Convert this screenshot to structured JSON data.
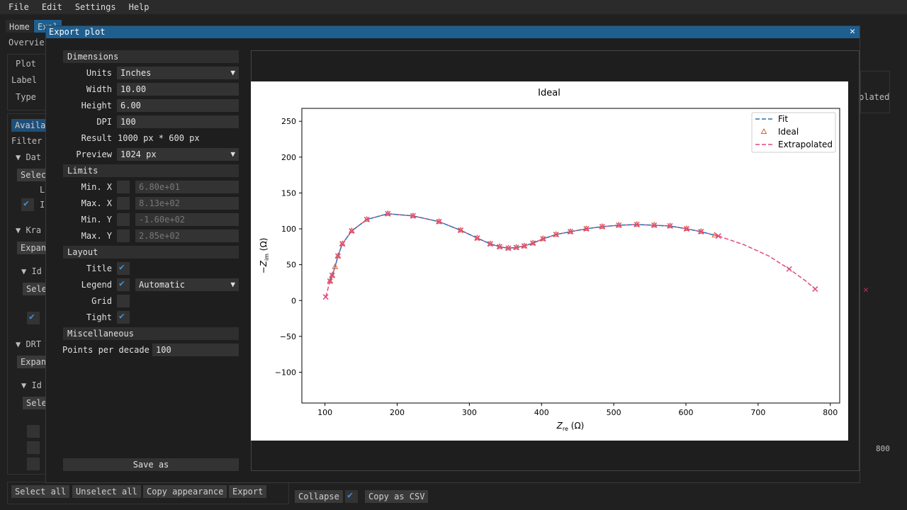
{
  "menu": [
    "File",
    "Edit",
    "Settings",
    "Help"
  ],
  "bg": {
    "tabs": [
      "Home",
      "Expl"
    ],
    "subtab": "Overvie",
    "labels": {
      "plot": "Plot",
      "label": "Label",
      "type": "Type",
      "avail": "Availa",
      "filter": "Filter",
      "dat": "▼ Dat",
      "selec1": "Selec",
      "kra": "▼ Kra",
      "expan1": "Expan",
      "id1": "▼ Id",
      "sele2": "Sele",
      "drt": "▼ DRT",
      "expan2": "Expan",
      "id2": "▼ Id",
      "sele3": "Sele",
      "l": "L",
      "i": "I",
      "right_lated": "plated",
      "axis_800": "800"
    },
    "bottom_buttons": [
      "Select all",
      "Unselect all",
      "Copy appearance",
      "Export"
    ],
    "collapse": "Collapse",
    "copy_csv": "Copy as CSV"
  },
  "modal": {
    "title": "Export plot",
    "close": "✕",
    "sections": {
      "dimensions": "Dimensions",
      "limits": "Limits",
      "layout": "Layout",
      "misc": "Miscellaneous"
    },
    "dims": {
      "units_label": "Units",
      "units_value": "Inches",
      "width_label": "Width",
      "width_value": "10.00",
      "height_label": "Height",
      "height_value": "6.00",
      "dpi_label": "DPI",
      "dpi_value": "100",
      "result_label": "Result",
      "result_value": "1000 px * 600 px",
      "preview_label": "Preview",
      "preview_value": "1024 px"
    },
    "limits": {
      "minx_label": "Min. X",
      "minx_value": "6.80e+01",
      "maxx_label": "Max. X",
      "maxx_value": "8.13e+02",
      "miny_label": "Min. Y",
      "miny_value": "-1.60e+02",
      "maxy_label": "Max. Y",
      "maxy_value": "2.85e+02"
    },
    "layout": {
      "title_label": "Title",
      "legend_label": "Legend",
      "legend_value": "Automatic",
      "grid_label": "Grid",
      "tight_label": "Tight"
    },
    "misc": {
      "ppd_label": "Points per decade",
      "ppd_value": "100"
    },
    "save": "Save as"
  },
  "chart_data": {
    "type": "scatter",
    "title": "Ideal",
    "xlabel": "Z_re (Ω)",
    "ylabel": "−Z_im (Ω)",
    "xlim": [
      68,
      813
    ],
    "ylim": [
      -143,
      268
    ],
    "xticks": [
      100,
      200,
      300,
      400,
      500,
      600,
      700,
      800
    ],
    "yticks": [
      -100,
      -50,
      0,
      50,
      100,
      150,
      200,
      250
    ],
    "legend": "top-right",
    "series": [
      {
        "name": "Fit",
        "style": "dashed",
        "color": "#1f77b4",
        "x": [
          107,
          110,
          114,
          118,
          124,
          137,
          158,
          187,
          222,
          258,
          288,
          311,
          329,
          342,
          354,
          365,
          376,
          388,
          402,
          420,
          440,
          462,
          484,
          507,
          532,
          556,
          578,
          601,
          621,
          640,
          645
        ],
        "y": [
          27,
          35,
          47,
          62,
          79,
          97,
          113,
          121,
          118,
          110,
          98,
          87,
          79,
          75,
          73,
          74,
          76,
          80,
          86,
          92,
          96,
          100,
          103,
          105,
          106,
          105,
          104,
          100,
          96,
          91,
          90
        ]
      },
      {
        "name": "Ideal",
        "style": "triangle",
        "color": "#d9602f",
        "x": [
          107,
          110,
          114,
          118,
          124,
          137,
          158,
          187,
          222,
          258,
          288,
          311,
          329,
          342,
          354,
          365,
          376,
          388,
          402,
          420,
          440,
          462,
          484,
          507,
          532,
          556,
          578,
          601,
          621,
          640
        ],
        "y": [
          27,
          35,
          47,
          62,
          79,
          97,
          113,
          121,
          118,
          110,
          98,
          87,
          79,
          75,
          73,
          74,
          76,
          80,
          86,
          92,
          96,
          100,
          103,
          105,
          106,
          105,
          104,
          100,
          96,
          91
        ]
      },
      {
        "name": "Extrapolated",
        "style": "dashed-x",
        "color": "#e3477f",
        "x": [
          101,
          104,
          107,
          110,
          114,
          118,
          124,
          137,
          158,
          187,
          222,
          258,
          288,
          311,
          329,
          342,
          354,
          365,
          376,
          388,
          402,
          420,
          440,
          462,
          484,
          507,
          532,
          556,
          578,
          601,
          621,
          645,
          680,
          715,
          743,
          765,
          779
        ],
        "y": [
          5,
          16,
          27,
          35,
          47,
          62,
          79,
          97,
          113,
          121,
          118,
          110,
          98,
          87,
          79,
          75,
          73,
          74,
          76,
          80,
          86,
          92,
          96,
          100,
          103,
          105,
          106,
          105,
          104,
          100,
          96,
          90,
          78,
          62,
          44,
          28,
          16
        ],
        "markers_x": [
          101,
          107,
          110,
          118,
          124,
          137,
          158,
          187,
          222,
          258,
          288,
          311,
          329,
          342,
          354,
          365,
          376,
          388,
          402,
          420,
          440,
          462,
          484,
          507,
          532,
          556,
          578,
          601,
          621,
          645,
          743,
          779
        ],
        "markers_y": [
          5,
          27,
          35,
          62,
          79,
          97,
          113,
          121,
          118,
          110,
          98,
          87,
          79,
          75,
          73,
          74,
          76,
          80,
          86,
          92,
          96,
          100,
          103,
          105,
          106,
          105,
          104,
          100,
          96,
          90,
          44,
          16
        ]
      }
    ]
  }
}
